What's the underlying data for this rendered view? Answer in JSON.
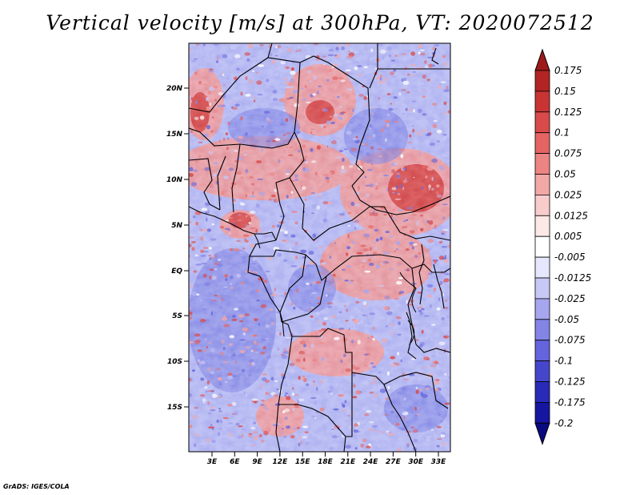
{
  "title": "Vertical velocity [m/s] at 300hPa, VT: 2020072512",
  "credit": "GrADS: IGES/COLA",
  "map": {
    "lat_labels": [
      "20N",
      "15N",
      "10N",
      "5N",
      "EQ",
      "5S",
      "10S",
      "15S"
    ],
    "lon_labels": [
      "3E",
      "6E",
      "9E",
      "12E",
      "15E",
      "18E",
      "21E",
      "24E",
      "27E",
      "30E",
      "33E"
    ]
  },
  "colorbar": {
    "levels": [
      "0.175",
      "0.15",
      "0.125",
      "0.1",
      "0.075",
      "0.05",
      "0.025",
      "0.0125",
      "0.005",
      "-0.005",
      "-0.0125",
      "-0.025",
      "-0.05",
      "-0.075",
      "-0.1",
      "-0.125",
      "-0.175",
      "-0.2"
    ],
    "colors": [
      "#9e1a1a",
      "#b32424",
      "#c83434",
      "#d94a4a",
      "#e46464",
      "#ec8484",
      "#f3a8a8",
      "#f9cccc",
      "#fde8e8",
      "#ffffff",
      "#e6e6fc",
      "#c8c8f6",
      "#a6a6ef",
      "#8484e6",
      "#6464dc",
      "#4646cc",
      "#2a2ab8",
      "#1616a0",
      "#0a0a80"
    ]
  }
}
